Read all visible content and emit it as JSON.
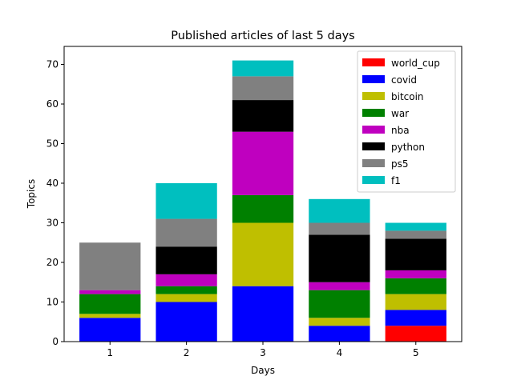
{
  "chart_data": {
    "type": "bar",
    "stacked": true,
    "title": "Published articles of last 5 days",
    "xlabel": "Days",
    "ylabel": "Topics",
    "categories": [
      "1",
      "2",
      "3",
      "4",
      "5"
    ],
    "ylim": [
      0,
      74.55
    ],
    "yticks": [
      0,
      10,
      20,
      30,
      40,
      50,
      60,
      70
    ],
    "grid": false,
    "legend_position": "top-right",
    "series": [
      {
        "name": "world_cup",
        "color": "#ff0000",
        "values": [
          0,
          0,
          0,
          0,
          4
        ]
      },
      {
        "name": "covid",
        "color": "#0000ff",
        "values": [
          6,
          10,
          14,
          4,
          4
        ]
      },
      {
        "name": "bitcoin",
        "color": "#bfbf00",
        "values": [
          1,
          2,
          16,
          2,
          4
        ]
      },
      {
        "name": "war",
        "color": "#008000",
        "values": [
          5,
          2,
          7,
          7,
          4
        ]
      },
      {
        "name": "nba",
        "color": "#bf00bf",
        "values": [
          1,
          3,
          16,
          2,
          2
        ]
      },
      {
        "name": "python",
        "color": "#000000",
        "values": [
          0,
          7,
          8,
          12,
          8
        ]
      },
      {
        "name": "ps5",
        "color": "#808080",
        "values": [
          12,
          7,
          6,
          3,
          2
        ]
      },
      {
        "name": "f1",
        "color": "#00bfbf",
        "values": [
          0,
          9,
          4,
          6,
          2
        ]
      }
    ]
  }
}
